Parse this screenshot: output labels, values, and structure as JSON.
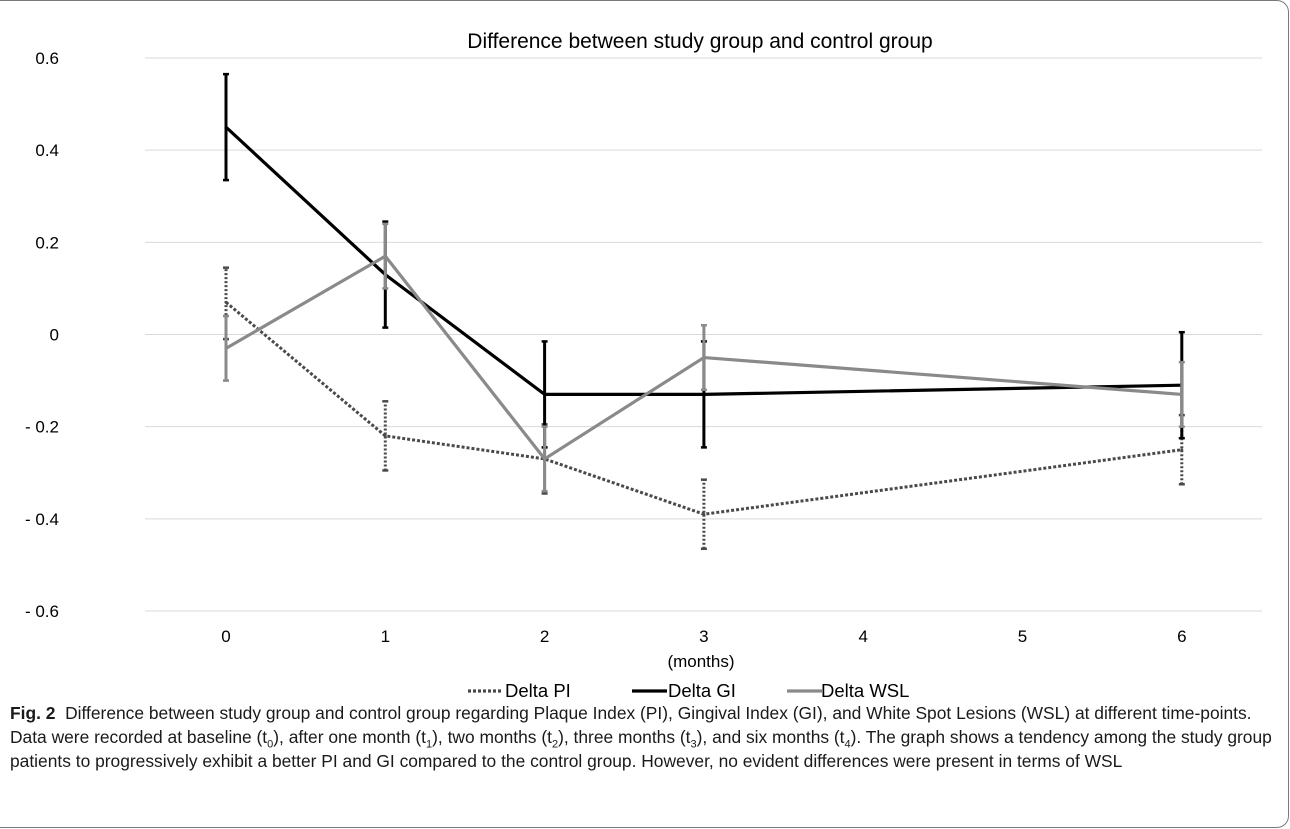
{
  "chart_data": {
    "type": "line",
    "title": "Difference between study group and control group",
    "xlabel": "(months)",
    "ylabel": "",
    "categories": [
      "0",
      "1",
      "2",
      "3",
      "4",
      "5",
      "6"
    ],
    "x": [
      0,
      1,
      2,
      3,
      4,
      5,
      6
    ],
    "ylim": [
      -0.6,
      0.6
    ],
    "yticks": [
      0.6,
      0.4,
      0.2,
      0,
      -0.2,
      -0.4,
      -0.6
    ],
    "ytick_labels": [
      "0.6",
      "0.4",
      "0.2",
      "0",
      "- 0.2",
      "- 0.4",
      "- 0.6"
    ],
    "grid": true,
    "legend_position": "bottom",
    "series": [
      {
        "name": "Delta PI",
        "style": "dotted",
        "color": "#4a4a4a",
        "x": [
          0,
          1,
          2,
          3,
          6
        ],
        "values": [
          0.07,
          -0.22,
          -0.27,
          -0.39,
          -0.25
        ],
        "err_low": [
          -0.01,
          -0.295,
          -0.345,
          -0.465,
          -0.325
        ],
        "err_high": [
          0.145,
          -0.145,
          -0.195,
          -0.315,
          -0.175
        ]
      },
      {
        "name": "Delta GI",
        "style": "solid",
        "color": "#000000",
        "x": [
          0,
          1,
          2,
          3,
          6
        ],
        "values": [
          0.45,
          0.13,
          -0.13,
          -0.13,
          -0.11
        ],
        "err_low": [
          0.335,
          0.015,
          -0.245,
          -0.245,
          -0.225
        ],
        "err_high": [
          0.565,
          0.245,
          -0.015,
          -0.015,
          0.005
        ]
      },
      {
        "name": "Delta WSL",
        "style": "solid",
        "color": "#8a8a8a",
        "x": [
          0,
          1,
          2,
          3,
          6
        ],
        "values": [
          -0.03,
          0.17,
          -0.27,
          -0.05,
          -0.13
        ],
        "err_low": [
          -0.1,
          0.1,
          -0.34,
          -0.12,
          -0.2
        ],
        "err_high": [
          0.04,
          0.24,
          -0.2,
          0.02,
          -0.06
        ]
      }
    ]
  },
  "caption": {
    "label": "Fig. 2",
    "text_1": "Difference between study group and control group regarding Plaque Index (PI), Gingival Index (GI), and White Spot Lesions (WSL) at different time-points. Data were recorded at baseline (t",
    "sub_0": "0",
    "text_2": "), after one month (t",
    "sub_1": "1",
    "text_3": "), two months (t",
    "sub_2": "2",
    "text_4": "), three months (t",
    "sub_3": "3",
    "text_5": "), and six months (t",
    "sub_4": "4",
    "text_6": "). The graph shows a tendency among the study group patients to progressively exhibit a better PI and GI compared to the control group. However, no evident differences were present in terms of WSL"
  }
}
